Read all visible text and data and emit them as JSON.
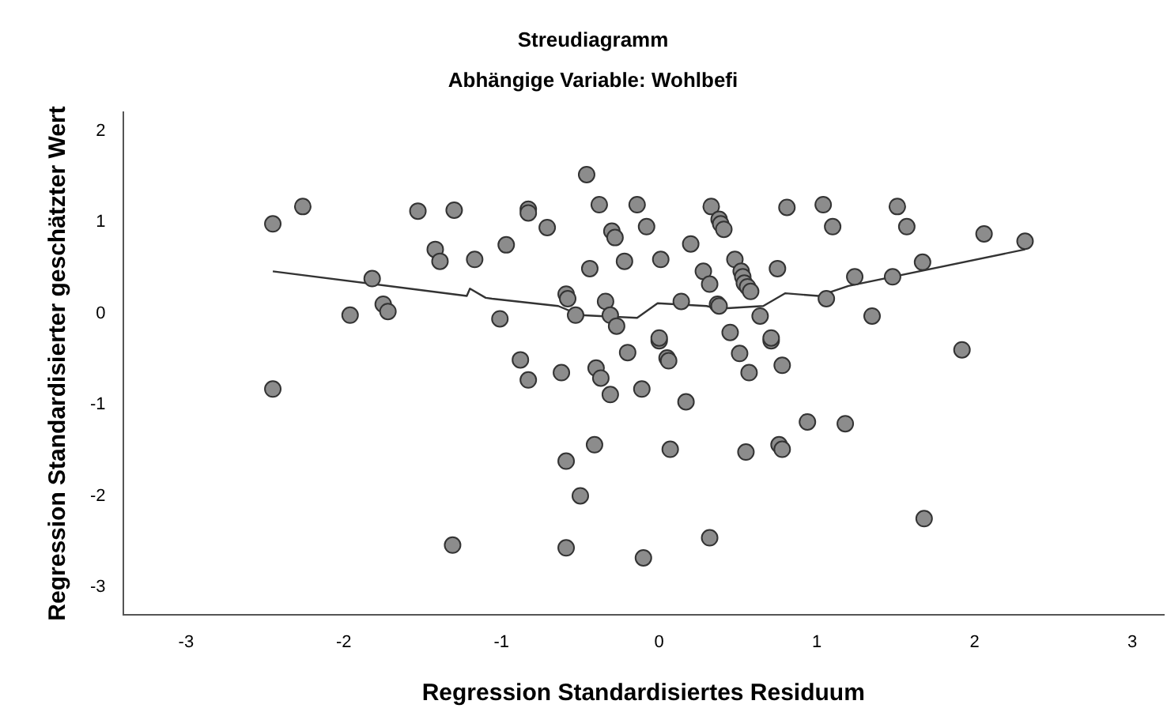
{
  "chart_data": {
    "type": "scatter",
    "title": "Streudiagramm",
    "subtitle": "Abhängige Variable: Wohlbefi",
    "xlabel": "Regression Standardisiertes Residuum",
    "ylabel": "Regression Standardisierter geschätzter Wert",
    "xlim": [
      -3.4,
      3.2
    ],
    "ylim": [
      -3.3,
      2.2
    ],
    "xticks": [
      -3,
      -2,
      -1,
      0,
      1,
      2,
      3
    ],
    "yticks": [
      -3,
      -2,
      -1,
      0,
      1,
      2
    ],
    "grid": false,
    "legend": false,
    "marker": "circle",
    "series": [
      {
        "type": "scatter",
        "color": "#8c8c8c",
        "x": [
          -2.45,
          -2.45,
          -2.26,
          -1.96,
          -1.82,
          -1.75,
          -1.72,
          -1.53,
          -1.42,
          -1.39,
          -1.3,
          -1.31,
          -1.17,
          -1.01,
          -0.97,
          -0.88,
          -0.83,
          -0.83,
          -0.83,
          -0.71,
          -0.62,
          -0.59,
          -0.58,
          -0.59,
          -0.59,
          -0.53,
          -0.5,
          -0.46,
          -0.44,
          -0.41,
          -0.4,
          -0.38,
          -0.37,
          -0.34,
          -0.31,
          -0.31,
          -0.3,
          -0.28,
          -0.27,
          -0.22,
          -0.2,
          -0.14,
          -0.11,
          -0.1,
          -0.08,
          0.32,
          0.07,
          0.55,
          0.76,
          0.78,
          0.94,
          1.18,
          0.17,
          0.05,
          0.06,
          0.51,
          0.57,
          0.78,
          0.71,
          0,
          0.33,
          0.81,
          1.04,
          1.1,
          0.38,
          0.39,
          0.41,
          0.2,
          0.01,
          0.48,
          0.28,
          0.32,
          0.52,
          0.53,
          0.54,
          0.56,
          0.58,
          0.75,
          1.24,
          1.06,
          0.14,
          0.37,
          0.38,
          0.64,
          0.45,
          0.71,
          0,
          1.51,
          1.57,
          2.06,
          2.32,
          1.67,
          1.48,
          1.35,
          1.92,
          1.68
        ],
        "values": [
          0.98,
          -0.83,
          1.17,
          -0.02,
          0.38,
          0.1,
          0.02,
          1.12,
          0.7,
          0.57,
          1.13,
          -2.54,
          0.59,
          -0.06,
          0.75,
          -0.51,
          1.14,
          1.1,
          -0.73,
          0.94,
          -0.65,
          0.21,
          0.16,
          -1.62,
          -2.57,
          -0.02,
          -2,
          1.52,
          0.49,
          -1.44,
          -0.6,
          1.19,
          -0.71,
          0.13,
          -0.02,
          -0.89,
          0.9,
          0.83,
          -0.14,
          0.57,
          -0.43,
          1.19,
          -0.83,
          -2.68,
          0.95,
          -2.46,
          -1.49,
          -1.52,
          -1.44,
          -1.49,
          -1.19,
          -1.21,
          -0.97,
          -0.49,
          -0.52,
          -0.44,
          -0.65,
          -0.57,
          -0.3,
          -0.3,
          1.17,
          1.16,
          1.19,
          0.95,
          1.03,
          0.98,
          0.92,
          0.76,
          0.59,
          0.59,
          0.46,
          0.32,
          0.46,
          0.4,
          0.33,
          0.29,
          0.24,
          0.49,
          0.4,
          0.16,
          0.13,
          0.1,
          0.08,
          -0.03,
          -0.21,
          -0.27,
          -0.27,
          1.17,
          0.95,
          0.87,
          0.79,
          0.56,
          0.4,
          -0.03,
          -0.4,
          -2.25
        ]
      },
      {
        "type": "line",
        "color": "#333333",
        "marker": "none",
        "x": [
          -2.45,
          -1.22,
          -1.2,
          -1.1,
          -1.06,
          -0.64,
          -0.5,
          -0.14,
          -0.01,
          0.3,
          0.37,
          0.66,
          0.8,
          1.01,
          1.2,
          2.32
        ],
        "values": [
          0.46,
          0.19,
          0.27,
          0.17,
          0.16,
          0.08,
          -0.02,
          -0.05,
          0.11,
          0.08,
          0.05,
          0.08,
          0.22,
          0.19,
          0.3,
          0.7
        ]
      }
    ]
  }
}
